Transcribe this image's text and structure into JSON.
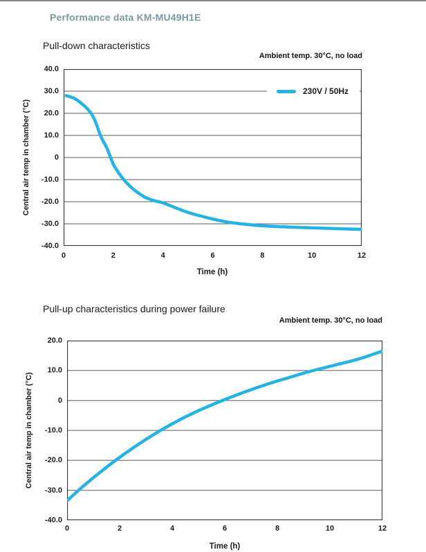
{
  "page": {
    "title": "Performance data KM-MU49H1E"
  },
  "colors": {
    "accent": "#26b2e3",
    "header_text": "#7c98a2",
    "grid": "#595959",
    "axis": "#333333"
  },
  "chart_data": [
    {
      "type": "line",
      "title": "Pull-down characteristics",
      "annotation": "Ambient temp. 30°C, no load",
      "xlabel": "Time (h)",
      "ylabel": "Central air temp in chamber (°C)",
      "xlim": [
        0,
        12
      ],
      "ylim": [
        -40,
        40
      ],
      "xticks": [
        "0",
        "2",
        "4",
        "6",
        "8",
        "10",
        "12"
      ],
      "yticks": [
        "40.0",
        "30.0",
        "20.0",
        "10.0",
        "0",
        "-10.0",
        "-20.0",
        "-30.0",
        "-40.0"
      ],
      "grid": "horizontal-only",
      "legend": {
        "position": "inside-top-right",
        "entries": [
          {
            "name": "230V / 50Hz",
            "color": "#26b2e3"
          }
        ]
      },
      "series": [
        {
          "name": "230V / 50Hz",
          "x": [
            0.1,
            0.5,
            1,
            1.25,
            1.5,
            1.75,
            2,
            2.25,
            2.5,
            2.75,
            3,
            3.25,
            3.5,
            3.75,
            4,
            4.5,
            5,
            5.5,
            6,
            6.5,
            7,
            7.5,
            8,
            9,
            10,
            11,
            12
          ],
          "y": [
            28,
            26.3,
            21.5,
            17,
            9.5,
            4,
            -3,
            -7.5,
            -11,
            -13.8,
            -16,
            -17.8,
            -19,
            -19.8,
            -20.5,
            -22.7,
            -24.8,
            -26.4,
            -27.8,
            -29,
            -29.8,
            -30.4,
            -30.9,
            -31.4,
            -31.8,
            -32.2,
            -32.5
          ]
        }
      ]
    },
    {
      "type": "line",
      "title": "Pull-up characteristics during power failure",
      "annotation": "Ambient temp. 30°C, no load",
      "xlabel": "Time (h)",
      "ylabel": "Central air temp in chamber (°C)",
      "xlim": [
        0,
        12
      ],
      "ylim": [
        -40,
        20
      ],
      "xticks": [
        "0",
        "2",
        "4",
        "6",
        "8",
        "10",
        "12"
      ],
      "yticks": [
        "20.0",
        "10.0",
        "0",
        "-10.0",
        "-20.0",
        "-30.0",
        "-40.0"
      ],
      "grid": "horizontal-only",
      "legend": null,
      "series": [
        {
          "name": "230V / 50Hz",
          "x": [
            0,
            0.5,
            1,
            1.5,
            2,
            2.5,
            3,
            3.5,
            4,
            4.5,
            5,
            5.5,
            6,
            6.5,
            7,
            7.5,
            8,
            8.5,
            9,
            9.5,
            10,
            10.5,
            11,
            11.5,
            12
          ],
          "y": [
            -33.5,
            -29.5,
            -25.8,
            -22.3,
            -19,
            -15.9,
            -13,
            -10.3,
            -7.8,
            -5.5,
            -3.4,
            -1.5,
            0.3,
            2,
            3.6,
            5.1,
            6.5,
            7.8,
            9.1,
            10.3,
            11.4,
            12.5,
            13.6,
            15,
            16.5
          ]
        }
      ]
    }
  ]
}
